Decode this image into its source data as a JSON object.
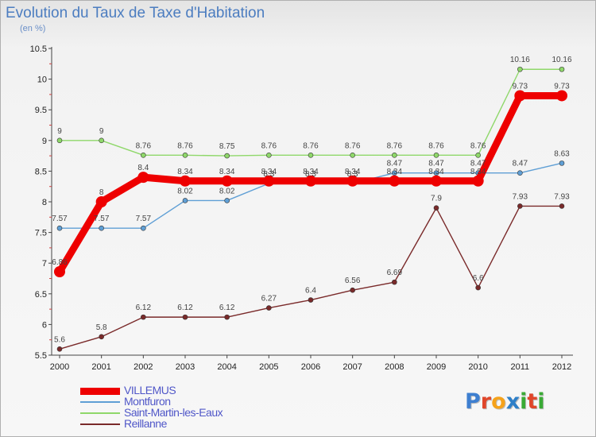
{
  "title": "Evolution du Taux de Taxe d'Habitation",
  "subtitle": "(en %)",
  "brand": {
    "letters": [
      {
        "ch": "P",
        "color": "#3e7fd0"
      },
      {
        "ch": "r",
        "color": "#e0462a"
      },
      {
        "ch": "o",
        "color": "#f5a21b"
      },
      {
        "ch": "x",
        "color": "#2e7fc8"
      },
      {
        "ch": "i",
        "color": "#3aaa35"
      },
      {
        "ch": "t",
        "color": "#e0462a"
      },
      {
        "ch": "i",
        "color": "#3aaa35"
      }
    ]
  },
  "chart_data": {
    "type": "line",
    "title": "Evolution du Taux de Taxe d'Habitation",
    "ylabel": "(en %)",
    "xlabel": "",
    "x": [
      "2000",
      "2001",
      "2002",
      "2003",
      "2004",
      "2005",
      "2006",
      "2007",
      "2008",
      "2009",
      "2010",
      "2011",
      "2012"
    ],
    "ylim": [
      5.5,
      10.5
    ],
    "yticks": [
      "5.5",
      "6",
      "6.5",
      "7",
      "7.5",
      "8",
      "8.5",
      "9",
      "9.5",
      "10",
      "10.5"
    ],
    "grid": false,
    "legend": "bottom-left",
    "series": [
      {
        "name": "VILLEMUS",
        "color": "#ee0000",
        "values": [
          6.86,
          8,
          8.4,
          8.34,
          8.34,
          8.34,
          8.34,
          8.34,
          8.34,
          8.34,
          8.34,
          9.73,
          9.73
        ],
        "labels": [
          "6.86",
          "8",
          "8.4",
          "8.34",
          "8.34",
          "8.34",
          "8.34",
          "8.34",
          "8.34",
          "8.34",
          "8.34",
          "9.73",
          "9.73"
        ]
      },
      {
        "name": "Montfuron",
        "color": "#5f9fd5",
        "values": [
          7.57,
          7.57,
          7.57,
          8.02,
          8.02,
          8.3,
          8.3,
          8.3,
          8.47,
          8.47,
          8.47,
          8.47,
          8.63
        ],
        "labels": [
          "7.57",
          "7.57",
          "7.57",
          "8.02",
          "8.02",
          "8.3",
          "8.3",
          "8.3",
          "8.47",
          "8.47",
          "8.47",
          "8.47",
          "8.63"
        ]
      },
      {
        "name": "Saint-Martin-les-Eaux",
        "color": "#8fd86a",
        "values": [
          9,
          9,
          8.76,
          8.76,
          8.75,
          8.76,
          8.76,
          8.76,
          8.76,
          8.76,
          8.76,
          10.16,
          10.16
        ],
        "labels": [
          "9",
          "9",
          "8.76",
          "8.76",
          "8.75",
          "8.76",
          "8.76",
          "8.76",
          "8.76",
          "8.76",
          "8.76",
          "10.16",
          "10.16"
        ]
      },
      {
        "name": "Reillanne",
        "color": "#7a2a2a",
        "values": [
          5.6,
          5.8,
          6.12,
          6.12,
          6.12,
          6.27,
          6.4,
          6.56,
          6.69,
          7.9,
          6.6,
          7.93,
          7.93
        ],
        "labels": [
          "5.6",
          "5.8",
          "6.12",
          "6.12",
          "6.12",
          "6.27",
          "6.4",
          "6.56",
          "6.69",
          "7.9",
          "6.6",
          "7.93",
          "7.93"
        ]
      }
    ]
  }
}
